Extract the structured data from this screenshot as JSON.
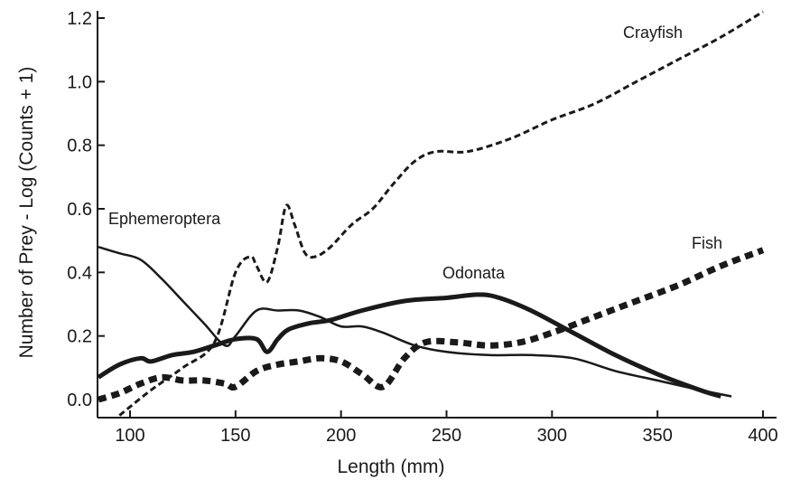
{
  "chart_data": {
    "type": "line",
    "title": "",
    "xlabel": "Length (mm)",
    "ylabel": "Number of Prey - Log (Counts + 1)",
    "xlim": [
      85,
      400
    ],
    "ylim": [
      -0.04,
      1.24
    ],
    "x_ticks": [
      "100",
      "150",
      "200",
      "250",
      "300",
      "350",
      "400"
    ],
    "y_ticks": [
      "0.0",
      "0.2",
      "0.4",
      "0.6",
      "0.8",
      "1.0",
      "1.2"
    ],
    "grid": false,
    "legend": "none",
    "series": [
      {
        "name": "Crayfish",
        "style": "dashed-thin",
        "color": "#1a1a1a",
        "x": [
          95,
          110,
          125,
          140,
          150,
          157,
          160,
          165,
          170,
          174,
          178,
          183,
          188,
          195,
          205,
          215,
          225,
          235,
          245,
          260,
          280,
          300,
          320,
          340,
          360,
          380,
          400
        ],
        "y": [
          -0.05,
          0.03,
          0.1,
          0.18,
          0.4,
          0.45,
          0.42,
          0.37,
          0.48,
          0.61,
          0.55,
          0.46,
          0.45,
          0.48,
          0.55,
          0.6,
          0.68,
          0.75,
          0.78,
          0.78,
          0.82,
          0.88,
          0.93,
          1.0,
          1.07,
          1.14,
          1.22
        ]
      },
      {
        "name": "Ephemeroptera",
        "style": "solid-thin",
        "color": "#1a1a1a",
        "x": [
          85,
          95,
          105,
          115,
          125,
          135,
          145,
          150,
          160,
          170,
          180,
          190,
          200,
          210,
          220,
          235,
          250,
          270,
          290,
          310,
          330,
          350,
          370,
          385
        ],
        "y": [
          0.48,
          0.46,
          0.44,
          0.38,
          0.31,
          0.24,
          0.17,
          0.2,
          0.28,
          0.28,
          0.28,
          0.26,
          0.23,
          0.23,
          0.21,
          0.17,
          0.15,
          0.14,
          0.14,
          0.13,
          0.09,
          0.06,
          0.03,
          0.01
        ]
      },
      {
        "name": "Odonata",
        "style": "solid-thick",
        "color": "#1a1a1a",
        "x": [
          85,
          95,
          105,
          110,
          120,
          130,
          140,
          150,
          160,
          165,
          170,
          175,
          185,
          195,
          210,
          230,
          250,
          265,
          275,
          290,
          310,
          330,
          350,
          370,
          380
        ],
        "y": [
          0.07,
          0.11,
          0.13,
          0.12,
          0.14,
          0.15,
          0.17,
          0.19,
          0.19,
          0.15,
          0.19,
          0.22,
          0.24,
          0.25,
          0.28,
          0.31,
          0.32,
          0.33,
          0.32,
          0.28,
          0.21,
          0.14,
          0.08,
          0.03,
          0.01
        ]
      },
      {
        "name": "Fish",
        "style": "dashed-thick",
        "color": "#1a1a1a",
        "x": [
          85,
          95,
          105,
          115,
          125,
          135,
          145,
          150,
          160,
          170,
          180,
          190,
          200,
          210,
          220,
          230,
          240,
          255,
          270,
          285,
          300,
          320,
          340,
          360,
          380,
          400
        ],
        "y": [
          0.0,
          0.02,
          0.05,
          0.07,
          0.06,
          0.06,
          0.05,
          0.04,
          0.09,
          0.11,
          0.12,
          0.13,
          0.12,
          0.08,
          0.04,
          0.13,
          0.18,
          0.18,
          0.17,
          0.18,
          0.21,
          0.26,
          0.31,
          0.36,
          0.42,
          0.47
        ]
      }
    ]
  }
}
